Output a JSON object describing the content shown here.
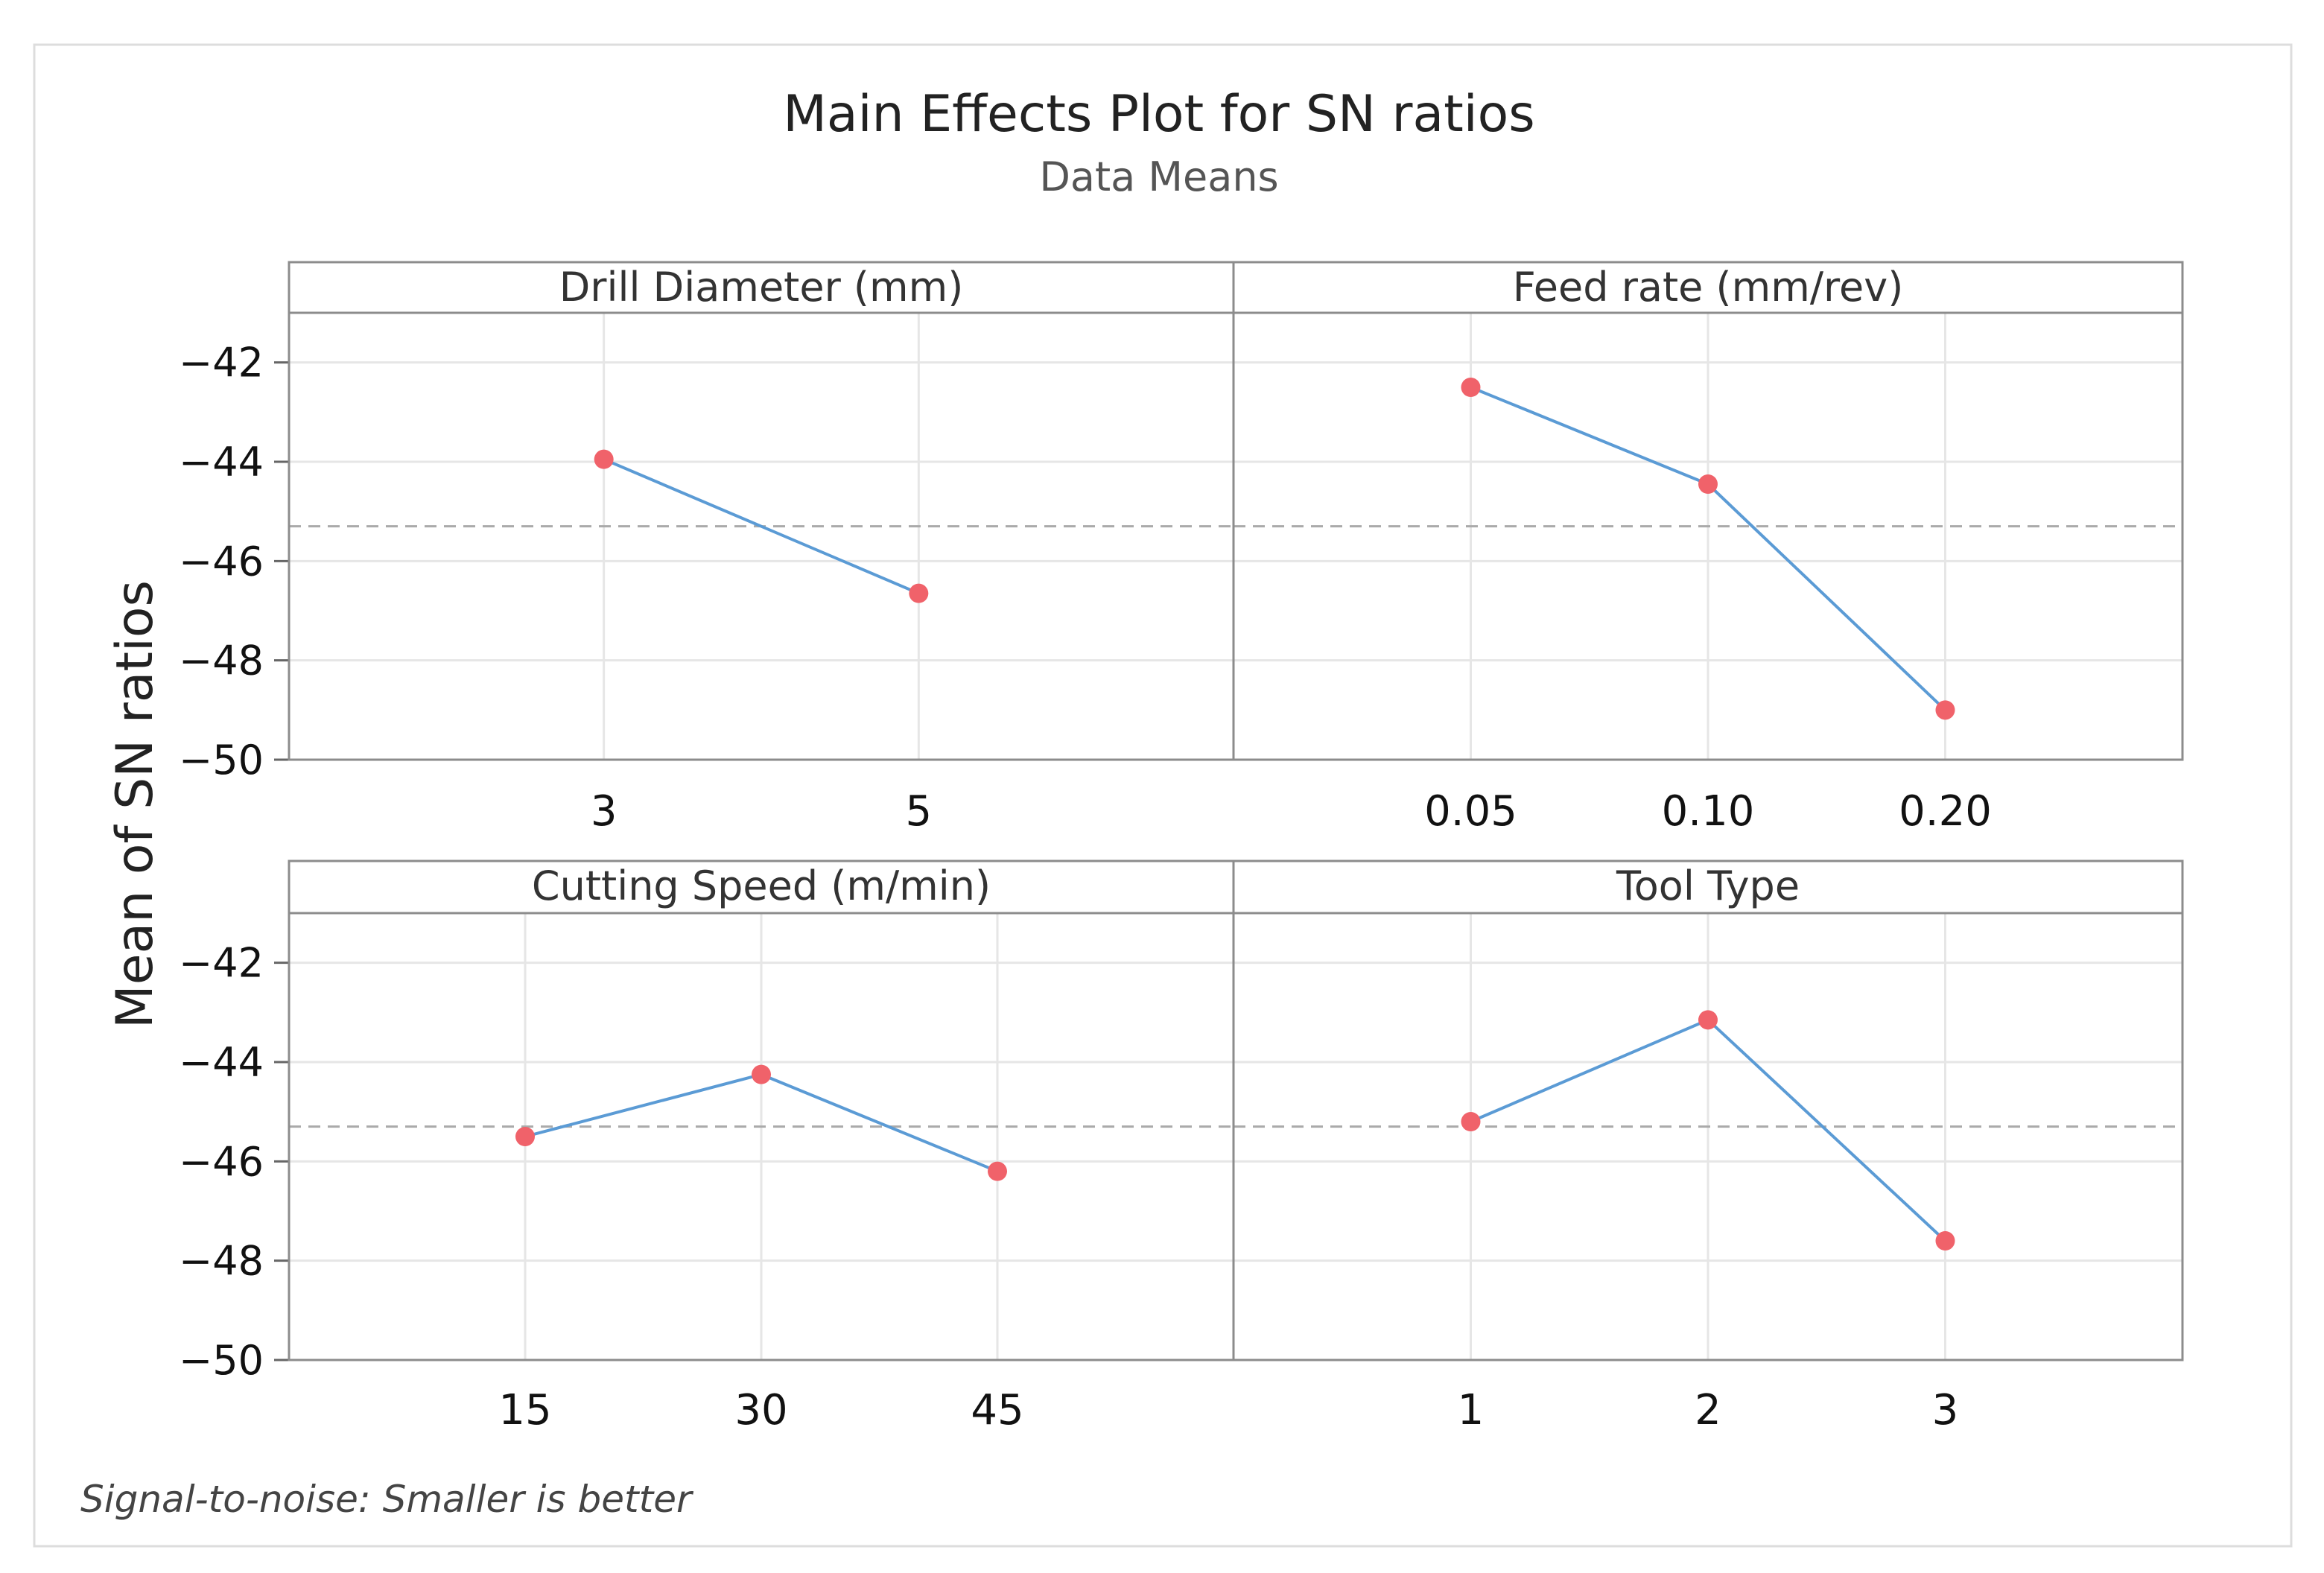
{
  "chart_data": {
    "type": "line",
    "title": "Main Effects Plot for SN ratios",
    "subtitle": "Data Means",
    "ylabel": "Mean of SN ratios",
    "ylim": [
      -50,
      -41
    ],
    "yticks": [
      -42,
      -44,
      -46,
      -48,
      -50
    ],
    "overall_mean": -45.3,
    "footnote": "Signal-to-noise: Smaller is better",
    "colors": {
      "line": "#5b9bd5",
      "point": "#f0626a",
      "mean_line": "#aaaaaa",
      "grid": "#e6e6e6",
      "frame": "#8c8c8c"
    },
    "panels": [
      {
        "name": "Drill Diameter (mm)",
        "categories": [
          "3",
          "5"
        ],
        "values": [
          -43.95,
          -46.65
        ]
      },
      {
        "name": "Feed rate (mm/rev)",
        "categories": [
          "0.05",
          "0.10",
          "0.20"
        ],
        "values": [
          -42.5,
          -44.45,
          -49.0
        ]
      },
      {
        "name": "Cutting Speed (m/min)",
        "categories": [
          "15",
          "30",
          "45"
        ],
        "values": [
          -45.5,
          -44.25,
          -46.2
        ]
      },
      {
        "name": "Tool Type",
        "categories": [
          "1",
          "2",
          "3"
        ],
        "values": [
          -45.2,
          -43.15,
          -47.6
        ]
      }
    ]
  }
}
